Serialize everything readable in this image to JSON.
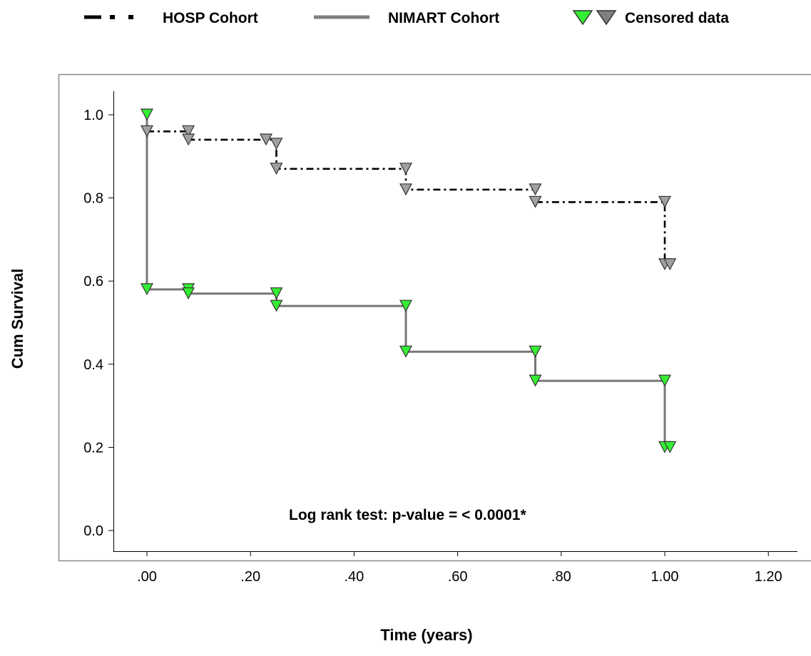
{
  "chart_data": {
    "type": "line",
    "subtype": "kaplan-meier step survival curve",
    "xlabel": "Time (years)",
    "ylabel": "Cum Survival",
    "xlim": [
      -0.05,
      1.23
    ],
    "ylim": [
      -0.05,
      1.06
    ],
    "x_ticks": [
      0,
      0.2,
      0.4,
      0.6,
      0.8,
      1.0,
      1.2
    ],
    "x_tick_labels": [
      ".00",
      ".20",
      ".40",
      ".60",
      ".80",
      "1.00",
      "1.20"
    ],
    "y_ticks": [
      0,
      0.2,
      0.4,
      0.6,
      0.8,
      1.0
    ],
    "y_tick_labels": [
      "0.0",
      "0.2",
      "0.4",
      "0.6",
      "0.8",
      "1.0"
    ],
    "grid": false,
    "legend_position": "top",
    "legend": [
      {
        "label": "HOSP Cohort",
        "style": "dash-dot"
      },
      {
        "label": "NIMART Cohort",
        "style": "solid"
      },
      {
        "label": "Censored data",
        "style": "triangle-down"
      }
    ],
    "annotation": "Log rank test: p-value = < 0.0001*",
    "series": [
      {
        "name": "HOSP Cohort",
        "line_style": "dash-dot",
        "line_color": "#000000",
        "marker_color": "#a0a0a0",
        "steps": [
          [
            0.0,
            0.96
          ],
          [
            0.08,
            0.94
          ],
          [
            0.25,
            0.87
          ],
          [
            0.5,
            0.82
          ],
          [
            0.75,
            0.79
          ],
          [
            1.0,
            0.64
          ],
          [
            1.01,
            0.64
          ]
        ],
        "censored": [
          [
            0.08,
            0.96
          ],
          [
            0.08,
            0.94
          ],
          [
            0.23,
            0.94
          ],
          [
            0.25,
            0.93
          ],
          [
            0.25,
            0.87
          ],
          [
            0.5,
            0.87
          ],
          [
            0.5,
            0.82
          ],
          [
            0.75,
            0.82
          ],
          [
            0.75,
            0.79
          ],
          [
            1.0,
            0.79
          ],
          [
            1.0,
            0.64
          ],
          [
            1.01,
            0.64
          ],
          [
            0.0,
            0.96
          ]
        ]
      },
      {
        "name": "NIMART Cohort",
        "line_style": "solid",
        "line_color": "#777777",
        "marker_color": "#33ee33",
        "steps": [
          [
            0.0,
            1.0
          ],
          [
            0.0,
            0.58
          ],
          [
            0.08,
            0.57
          ],
          [
            0.25,
            0.54
          ],
          [
            0.5,
            0.43
          ],
          [
            0.75,
            0.36
          ],
          [
            1.0,
            0.2
          ],
          [
            1.01,
            0.2
          ]
        ],
        "censored": [
          [
            0.0,
            1.0
          ],
          [
            0.0,
            0.58
          ],
          [
            0.08,
            0.58
          ],
          [
            0.08,
            0.57
          ],
          [
            0.25,
            0.57
          ],
          [
            0.25,
            0.54
          ],
          [
            0.5,
            0.54
          ],
          [
            0.5,
            0.43
          ],
          [
            0.75,
            0.43
          ],
          [
            0.75,
            0.36
          ],
          [
            1.0,
            0.36
          ],
          [
            1.0,
            0.2
          ],
          [
            1.01,
            0.2
          ]
        ]
      }
    ],
    "colors": {
      "hosp_line": "#000000",
      "hosp_marker": "#a0a0a0",
      "nimart_line": "#777777",
      "nimart_marker": "#33ee33",
      "frame": "#888888"
    }
  }
}
